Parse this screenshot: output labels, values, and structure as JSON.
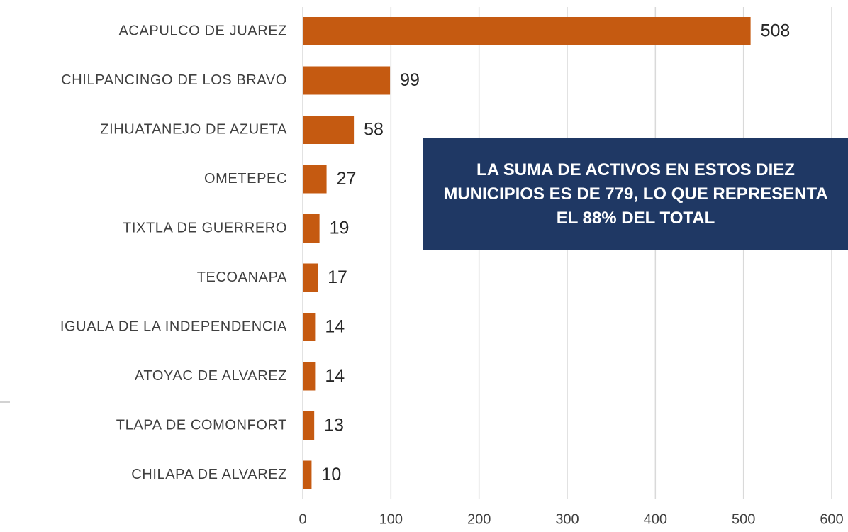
{
  "chart_data": {
    "type": "bar",
    "orientation": "horizontal",
    "categories": [
      "ACAPULCO DE JUAREZ",
      "CHILPANCINGO DE LOS BRAVO",
      "ZIHUATANEJO DE AZUETA",
      "OMETEPEC",
      "TIXTLA DE GUERRERO",
      "TECOANAPA",
      "IGUALA DE LA INDEPENDENCIA",
      "ATOYAC DE ALVAREZ",
      "TLAPA DE COMONFORT",
      "CHILAPA DE ALVAREZ"
    ],
    "values": [
      508,
      99,
      58,
      27,
      19,
      17,
      14,
      14,
      13,
      10
    ],
    "color": "#c55a11",
    "xlim": [
      0,
      600
    ],
    "xticks": [
      0,
      100,
      200,
      300,
      400,
      500,
      600
    ],
    "grid": true,
    "annotation": "LA SUMA DE ACTIVOS EN ESTOS DIEZ MUNICIPIOS ES DE 779, LO QUE REPRESENTA EL 88% DEL TOTAL"
  }
}
